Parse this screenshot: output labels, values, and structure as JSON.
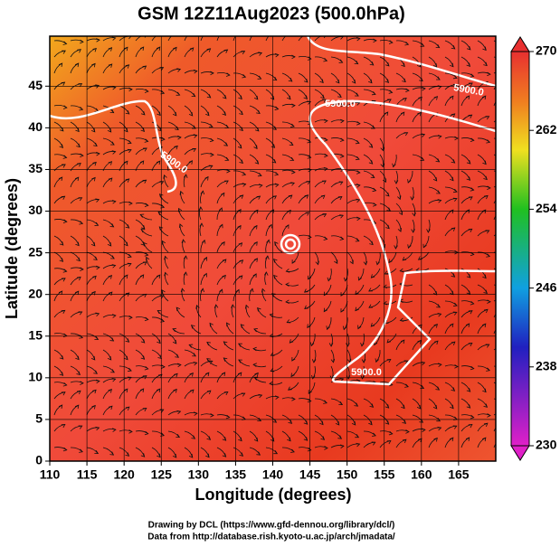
{
  "chart_data": {
    "type": "map",
    "title": "GSM 12Z11Aug2023 (500.0hPa)",
    "xlabel": "Longitude (degrees)",
    "ylabel": "Latitude  (degrees)",
    "xlim": [
      110,
      170
    ],
    "xticks": [
      110,
      115,
      120,
      125,
      130,
      135,
      140,
      145,
      150,
      155,
      160,
      165
    ],
    "ylim": [
      0,
      51
    ],
    "yticks": [
      0,
      5,
      10,
      15,
      20,
      25,
      30,
      35,
      40,
      45
    ],
    "grid": true,
    "colorbar": {
      "lim": [
        230,
        270
      ],
      "ticks": [
        230,
        238,
        246,
        254,
        262,
        270
      ]
    },
    "contour_labels": [
      "5900.0",
      "5900.0",
      "5900.0",
      "5900.0"
    ],
    "credits": [
      "Drawing by DCL (https://www.gfd-dennou.org/library/dcl/)",
      "Data from http://database.rish.kyoto-u.ac.jp/arch/jmadata/"
    ]
  }
}
